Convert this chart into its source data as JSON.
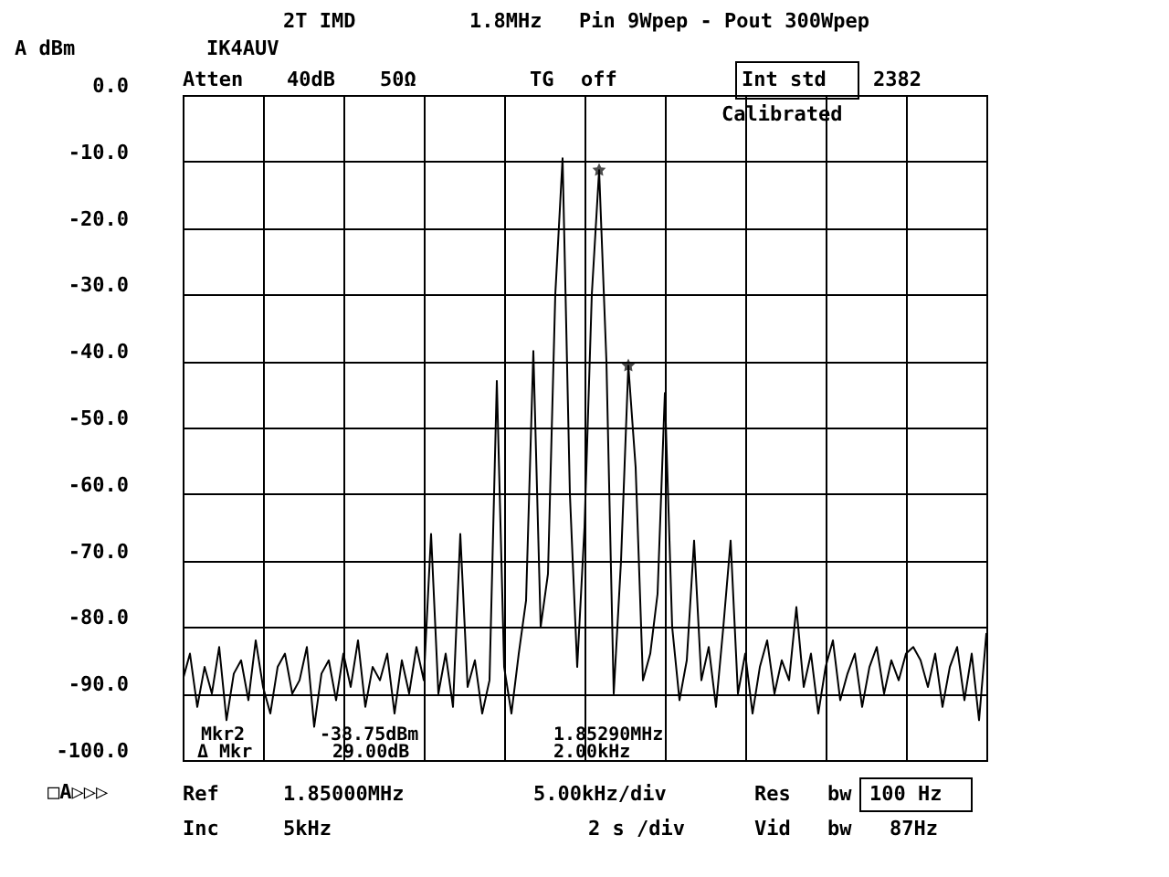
{
  "chart_data": {
    "type": "line",
    "title": "2T IMD",
    "subtitle": "Pin 9Wpep - Pout 300Wpep",
    "ylabel": "A dBm",
    "categories": [
      null,
      null,
      null,
      null,
      null,
      null,
      null,
      null,
      null,
      null,
      null,
      null,
      null,
      null,
      null,
      null,
      null,
      null,
      null,
      null,
      null,
      null,
      null,
      null,
      null,
      null,
      null,
      null,
      null,
      null,
      null,
      null,
      null,
      null,
      null,
      null,
      null,
      null,
      null,
      null,
      null,
      null,
      null,
      null,
      null,
      null,
      null,
      null,
      null,
      null,
      null,
      null,
      null,
      null,
      null,
      null,
      null,
      null,
      null,
      null,
      null,
      null,
      null,
      null,
      null,
      null,
      null,
      null,
      null,
      null,
      null,
      null,
      null,
      null,
      null,
      null,
      null,
      null,
      null,
      null,
      null,
      null,
      null,
      null,
      null,
      null,
      null,
      null,
      null,
      null,
      null,
      null,
      null,
      null,
      null,
      null,
      null,
      null,
      null,
      null,
      null,
      null,
      null,
      null,
      null,
      null,
      null,
      null,
      null,
      null,
      null
    ],
    "series": [
      {
        "color": "#000000",
        "values": [
          -88,
          -84,
          -92,
          -86,
          -90,
          -83,
          -94,
          -87,
          -85,
          -91,
          -82,
          -89,
          -93,
          -86,
          -84,
          -90,
          -88,
          -83,
          -95,
          -87,
          -85,
          -91,
          -84,
          -89,
          -82,
          -92,
          -86,
          -88,
          -84,
          -93,
          -85,
          -90,
          -83,
          -88,
          -66,
          -90,
          -84,
          -92,
          -66,
          -89,
          -85,
          -93,
          -88,
          -43,
          -86,
          -93,
          -84,
          -76,
          -38.5,
          -80,
          -72,
          -30,
          -9.5,
          -60,
          -86,
          -65,
          -30,
          -11.3,
          -40,
          -90,
          -70,
          -40.7,
          -56,
          -88,
          -84,
          -75,
          -44.8,
          -80,
          -91,
          -85,
          -67,
          -88,
          -83,
          -92,
          -80,
          -67,
          -90,
          -84,
          -93,
          -86,
          -82,
          -90,
          -85,
          -88,
          -77,
          -89,
          -84,
          -93,
          -86,
          -82,
          -91,
          -87,
          -84,
          -92,
          -86,
          -83,
          -90,
          -85,
          -88,
          -84,
          -83,
          -85,
          -89,
          -84,
          -92,
          -86,
          -83,
          -91,
          -84,
          -94,
          -81
        ]
      },
      {
        "type": "scatter",
        "color": "#000000",
        "marker": "star",
        "values": [
          null,
          null,
          null,
          null,
          null,
          null,
          null,
          null,
          null,
          null,
          null,
          null,
          null,
          null,
          null,
          null,
          null,
          null,
          null,
          null,
          null,
          null,
          null,
          null,
          null,
          null,
          null,
          null,
          null,
          null,
          null,
          null,
          null,
          null,
          null,
          null,
          null,
          null,
          null,
          null,
          null,
          null,
          null,
          null,
          null,
          null,
          null,
          null,
          null,
          null,
          null,
          null,
          null,
          null,
          null,
          null,
          null,
          -11.3,
          null,
          null,
          null,
          -40.7,
          null,
          null,
          null,
          null,
          null,
          null,
          null,
          null,
          null,
          null,
          null,
          null,
          null,
          null,
          null,
          null,
          null,
          null,
          null,
          null,
          null,
          null,
          null,
          null,
          null,
          null,
          null,
          null,
          null,
          null,
          null,
          null,
          null,
          null,
          null,
          null,
          null,
          null,
          null,
          null,
          null,
          null,
          null,
          null,
          null,
          null,
          null,
          null,
          null
        ]
      }
    ],
    "ylim": [
      -100,
      0
    ],
    "yticks": [
      {
        "value": 0,
        "label": "0.0"
      },
      {
        "value": -10,
        "label": "-10.0"
      },
      {
        "value": -20,
        "label": "-20.0"
      },
      {
        "value": -30,
        "label": "-30.0"
      },
      {
        "value": -40,
        "label": "-40.0"
      },
      {
        "value": -50,
        "label": "-50.0"
      },
      {
        "value": -60,
        "label": "-60.0"
      },
      {
        "value": -70,
        "label": "-70.0"
      },
      {
        "value": -80,
        "label": "-80.0"
      },
      {
        "value": -90,
        "label": "-90.0"
      },
      {
        "value": -100,
        "label": "-100.0"
      }
    ],
    "tick_labels": "y",
    "grid": true,
    "annotations": [
      "1.8MHz",
      "IK4AUV",
      "Atten",
      "40dB",
      "50Ω",
      "TG",
      "off",
      "Int   std",
      "2382",
      "Calibrated",
      "Mkr2",
      "-38.75dBm",
      "1.85290MHz",
      "Δ Mkr",
      "29.00dB",
      "2.00kHz",
      "Ref",
      "1.85000MHz",
      "5.00kHz/div",
      "Res",
      "bw",
      "100   Hz",
      "Inc",
      "5kHz",
      "2  s  /div",
      "Vid",
      "bw",
      "87Hz",
      "□A▷▷▷"
    ]
  }
}
